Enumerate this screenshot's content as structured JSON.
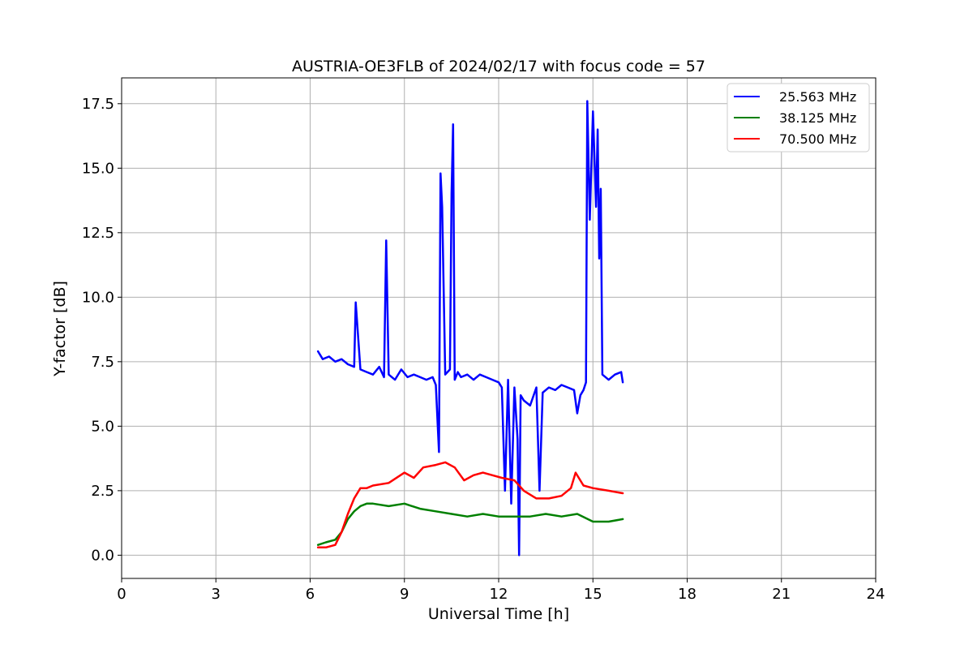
{
  "chart_data": {
    "type": "line",
    "title": "AUSTRIA-OE3FLB of 2024/02/17 with focus code = 57",
    "xlabel": "Universal Time [h]",
    "ylabel": "Y-factor [dB]",
    "xlim": [
      0,
      24
    ],
    "ylim": [
      -0.9,
      18.5
    ],
    "xticks": [
      0,
      3,
      6,
      9,
      12,
      15,
      18,
      21,
      24
    ],
    "yticks": [
      0.0,
      2.5,
      5.0,
      7.5,
      10.0,
      12.5,
      15.0,
      17.5
    ],
    "ytick_labels": [
      "0.0",
      "2.5",
      "5.0",
      "7.5",
      "10.0",
      "12.5",
      "15.0",
      "17.5"
    ],
    "grid": true,
    "legend_position": "top-right",
    "series": [
      {
        "name": "25.563 MHz",
        "color": "#0000ff",
        "x": [
          6.25,
          6.4,
          6.6,
          6.8,
          7.0,
          7.2,
          7.4,
          7.45,
          7.6,
          7.8,
          8.0,
          8.2,
          8.35,
          8.42,
          8.5,
          8.7,
          8.9,
          9.1,
          9.3,
          9.5,
          9.7,
          9.9,
          10.0,
          10.1,
          10.15,
          10.2,
          10.3,
          10.45,
          10.5,
          10.55,
          10.6,
          10.7,
          10.8,
          11.0,
          11.2,
          11.4,
          11.6,
          11.8,
          12.0,
          12.1,
          12.2,
          12.3,
          12.4,
          12.5,
          12.6,
          12.65,
          12.7,
          12.8,
          13.0,
          13.2,
          13.3,
          13.4,
          13.6,
          13.8,
          14.0,
          14.2,
          14.4,
          14.5,
          14.6,
          14.7,
          14.78,
          14.82,
          14.9,
          15.0,
          15.1,
          15.15,
          15.2,
          15.25,
          15.3,
          15.5,
          15.7,
          15.9,
          15.95
        ],
        "y": [
          7.9,
          7.6,
          7.7,
          7.5,
          7.6,
          7.4,
          7.3,
          9.8,
          7.2,
          7.1,
          7.0,
          7.3,
          6.9,
          12.2,
          7.0,
          6.8,
          7.2,
          6.9,
          7.0,
          6.9,
          6.8,
          6.9,
          6.6,
          4.0,
          14.8,
          13.5,
          7.0,
          7.2,
          14.0,
          16.7,
          6.8,
          7.1,
          6.9,
          7.0,
          6.8,
          7.0,
          6.9,
          6.8,
          6.7,
          6.5,
          2.5,
          6.8,
          2.0,
          6.5,
          4.5,
          0.0,
          6.2,
          6.0,
          5.8,
          6.5,
          2.5,
          6.3,
          6.5,
          6.4,
          6.6,
          6.5,
          6.4,
          5.5,
          6.2,
          6.4,
          6.7,
          17.6,
          13.0,
          17.2,
          13.5,
          16.5,
          11.5,
          14.2,
          7.0,
          6.8,
          7.0,
          7.1,
          6.7
        ]
      },
      {
        "name": "38.125 MHz",
        "color": "#008000",
        "x": [
          6.25,
          6.5,
          6.8,
          7.0,
          7.2,
          7.4,
          7.6,
          7.8,
          8.0,
          8.5,
          9.0,
          9.5,
          10.0,
          10.5,
          11.0,
          11.5,
          12.0,
          12.5,
          13.0,
          13.5,
          14.0,
          14.5,
          15.0,
          15.5,
          15.95
        ],
        "y": [
          0.4,
          0.5,
          0.6,
          0.9,
          1.4,
          1.7,
          1.9,
          2.0,
          2.0,
          1.9,
          2.0,
          1.8,
          1.7,
          1.6,
          1.5,
          1.6,
          1.5,
          1.5,
          1.5,
          1.6,
          1.5,
          1.6,
          1.3,
          1.3,
          1.4
        ]
      },
      {
        "name": "70.500 MHz",
        "color": "#ff0000",
        "x": [
          6.25,
          6.5,
          6.8,
          7.0,
          7.2,
          7.4,
          7.6,
          7.8,
          8.0,
          8.5,
          9.0,
          9.3,
          9.6,
          10.0,
          10.3,
          10.6,
          10.9,
          11.2,
          11.5,
          11.8,
          12.1,
          12.5,
          12.8,
          13.2,
          13.6,
          14.0,
          14.3,
          14.45,
          14.7,
          15.0,
          15.5,
          15.95
        ],
        "y": [
          0.3,
          0.3,
          0.4,
          0.9,
          1.6,
          2.2,
          2.6,
          2.6,
          2.7,
          2.8,
          3.2,
          3.0,
          3.4,
          3.5,
          3.6,
          3.4,
          2.9,
          3.1,
          3.2,
          3.1,
          3.0,
          2.9,
          2.5,
          2.2,
          2.2,
          2.3,
          2.6,
          3.2,
          2.7,
          2.6,
          2.5,
          2.4
        ]
      }
    ]
  }
}
